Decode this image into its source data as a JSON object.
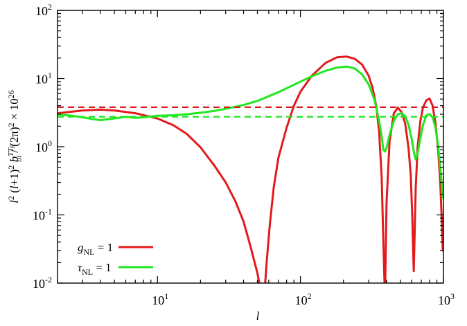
{
  "chart_data": {
    "type": "line",
    "title": "",
    "xlabel": "l",
    "ylabel": "l² (l+1)² b_lll^{TTμ} / (2π)² × 10²⁶",
    "ylabel_parts": {
      "a": "l",
      "a_sup": "2",
      "b": " (",
      "c": "l",
      "d": "+1)",
      "d_sup": "2",
      "e": " ",
      "f": "b",
      "f_sup": "TTμ",
      "f_sub": "lll",
      "g": " / (2π)",
      "g_sup": "2",
      "h": " × 10",
      "h_sup": "26"
    },
    "xscale": "log",
    "yscale": "log",
    "xlim": [
      2,
      1000
    ],
    "ylim": [
      0.01,
      100
    ],
    "x_ticks": [
      {
        "value": 10,
        "base": "10",
        "exp": "1"
      },
      {
        "value": 100,
        "base": "10",
        "exp": "2"
      },
      {
        "value": 1000,
        "base": "10",
        "exp": "3"
      }
    ],
    "y_ticks": [
      {
        "value": 100,
        "base": "10",
        "exp": "2"
      },
      {
        "value": 10,
        "base": "10",
        "exp": "1"
      },
      {
        "value": 1,
        "base": "10",
        "exp": "0"
      },
      {
        "value": 0.1,
        "base": "10",
        "exp": "-1"
      },
      {
        "value": 0.01,
        "base": "10",
        "exp": "-2"
      }
    ],
    "grid": false,
    "legend_position": "bottom-left",
    "series": [
      {
        "name": "g_NL = 1",
        "label_main": "g",
        "label_sub": "NL",
        "label_rest": " = 1",
        "color": "#e31a1c",
        "style": "solid",
        "x": [
          2,
          3,
          4,
          5,
          7,
          10,
          13,
          16,
          20,
          25,
          30,
          35,
          40,
          45,
          50,
          52,
          53.5,
          55,
          56.5,
          58,
          61,
          65,
          70,
          80,
          90,
          100,
          120,
          150,
          180,
          210,
          240,
          270,
          300,
          320,
          340,
          355,
          370,
          380,
          390,
          400,
          420,
          450,
          480,
          510,
          540,
          570,
          590,
          605,
          620,
          640,
          660,
          690,
          720,
          760,
          800,
          840,
          880,
          920,
          950,
          970,
          990,
          1000
        ],
        "y": [
          3.1,
          3.4,
          3.5,
          3.4,
          3.1,
          2.6,
          2.05,
          1.55,
          0.98,
          0.53,
          0.3,
          0.16,
          0.08,
          0.033,
          0.014,
          0.009,
          0.006,
          0.006,
          0.009,
          0.02,
          0.07,
          0.25,
          0.68,
          1.9,
          4.0,
          6.4,
          11,
          17,
          20.5,
          21,
          19.5,
          16,
          11,
          7.2,
          3.8,
          1.65,
          0.35,
          0.04,
          0.006,
          0.15,
          1.2,
          3.1,
          3.75,
          3.2,
          2.2,
          0.95,
          0.4,
          0.1,
          0.015,
          0.25,
          1.0,
          2.4,
          3.8,
          4.8,
          5.1,
          4.0,
          2.2,
          0.85,
          0.3,
          0.1,
          0.03,
          0.09
        ]
      },
      {
        "name": "τ_NL = 1",
        "label_main": "τ",
        "label_sub": "NL",
        "label_rest": " = 1",
        "color": "#1fe81f",
        "style": "solid",
        "x": [
          2,
          2.5,
          3,
          3.5,
          4,
          5,
          6,
          7,
          8,
          10,
          13,
          16,
          20,
          25,
          30,
          35,
          40,
          50,
          60,
          70,
          80,
          100,
          120,
          150,
          180,
          210,
          240,
          270,
          300,
          330,
          355,
          370,
          380,
          390,
          400,
          420,
          450,
          480,
          510,
          540,
          570,
          600,
          620,
          640,
          660,
          690,
          720,
          760,
          800,
          840,
          880,
          920,
          950,
          970,
          985,
          1000
        ],
        "y": [
          3.0,
          2.85,
          2.7,
          2.55,
          2.45,
          2.6,
          2.75,
          2.65,
          2.7,
          2.85,
          2.9,
          3.0,
          3.15,
          3.35,
          3.6,
          3.85,
          4.1,
          4.7,
          5.5,
          6.3,
          7.2,
          9.0,
          10.8,
          13,
          14.5,
          15,
          14,
          11.5,
          8.2,
          4.8,
          2.4,
          1.4,
          0.9,
          0.85,
          0.95,
          1.5,
          2.4,
          3.0,
          3.1,
          2.8,
          2.1,
          1.3,
          0.85,
          0.65,
          0.8,
          1.35,
          2.1,
          2.9,
          3.0,
          2.7,
          1.9,
          1.0,
          0.5,
          0.3,
          0.18,
          0.22
        ]
      },
      {
        "name": "g_NL = 1 (dashed)",
        "color": "#e31a1c",
        "style": "dashed",
        "x": [
          2,
          1000
        ],
        "y": [
          3.8,
          3.8
        ]
      },
      {
        "name": "τ_NL = 1 (dashed)",
        "color": "#1fe81f",
        "style": "dashed",
        "x": [
          2,
          1000
        ],
        "y": [
          2.75,
          2.75
        ]
      }
    ]
  }
}
